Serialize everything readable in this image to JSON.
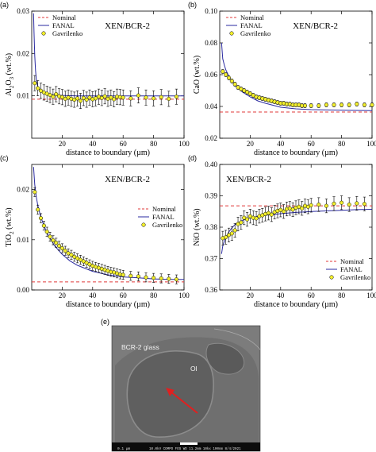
{
  "chart_data": [
    {
      "type": "line",
      "panel_label": "(a)",
      "annotation": "XEN/BCR-2",
      "xlabel": "distance to boundary (µm)",
      "ylabel": "Al2O3 (wt.%)",
      "ylabel_base": "Al",
      "ylabel_sub1": "2",
      "ylabel_mid": "O",
      "ylabel_sub2": "3",
      "ylabel_tail": " (wt.%)",
      "xlim": [
        0,
        100
      ],
      "ylim": [
        0,
        0.03
      ],
      "xticks": [
        20,
        40,
        60,
        80,
        100
      ],
      "yticks": [
        0.01,
        0.02,
        0.03
      ],
      "ytick_labels": [
        "0.01",
        "0.02",
        "0.03"
      ],
      "legend_position": "top-left",
      "series": [
        {
          "name": "Nominal",
          "kind": "dashed",
          "color": "#e03a3a",
          "x": [
            0,
            100
          ],
          "y": [
            0.0092,
            0.0092
          ]
        },
        {
          "name": "FANAL",
          "kind": "line",
          "color": "#2a2aa0",
          "x": [
            1.2,
            1.5,
            2,
            2.5,
            3,
            4,
            5,
            6,
            8,
            10,
            15,
            20,
            30,
            40,
            50,
            60,
            70,
            80,
            90,
            100
          ],
          "y": [
            0.0295,
            0.025,
            0.0195,
            0.016,
            0.0138,
            0.0122,
            0.0115,
            0.0111,
            0.0107,
            0.0104,
            0.0102,
            0.0101,
            0.01,
            0.01,
            0.01,
            0.01,
            0.01,
            0.01,
            0.01,
            0.01
          ]
        },
        {
          "name": "Gavrilenko",
          "kind": "points",
          "color": "#f2ee2c",
          "x": [
            2,
            4,
            6,
            8,
            10,
            12,
            14,
            16,
            18,
            20,
            22,
            24,
            26,
            28,
            30,
            32,
            34,
            36,
            38,
            40,
            42,
            44,
            46,
            48,
            50,
            52,
            54,
            56,
            58,
            60,
            65,
            70,
            75,
            80,
            85,
            90,
            95
          ],
          "y": [
            0.013,
            0.0118,
            0.0112,
            0.0108,
            0.0105,
            0.0102,
            0.0098,
            0.0104,
            0.0099,
            0.0097,
            0.0093,
            0.0096,
            0.0093,
            0.0091,
            0.0094,
            0.0088,
            0.0095,
            0.0091,
            0.0096,
            0.0092,
            0.0094,
            0.0098,
            0.0095,
            0.0099,
            0.0093,
            0.0096,
            0.0092,
            0.0098,
            0.0097,
            0.0096,
            0.0094,
            0.0101,
            0.0096,
            0.0094,
            0.0097,
            0.0093,
            0.0098
          ],
          "err": 0.0018
        }
      ]
    },
    {
      "type": "line",
      "panel_label": "(b)",
      "annotation": "XEN/BCR-2",
      "xlabel": "distance to boundary (µm)",
      "ylabel": "CaO (wt.%)",
      "ylabel_base": "CaO",
      "ylabel_sub1": "",
      "ylabel_mid": "",
      "ylabel_sub2": "",
      "ylabel_tail": " (wt.%)",
      "xlim": [
        0,
        100
      ],
      "ylim": [
        0.02,
        0.1
      ],
      "xticks": [
        20,
        40,
        60,
        80,
        100
      ],
      "xtick_labels": [
        "20",
        "40",
        "60",
        "80",
        "100"
      ],
      "yticks": [
        0.02,
        0.04,
        0.06,
        0.08,
        0.1
      ],
      "ytick_labels": [
        "0.02",
        "0.04",
        "0.06",
        "0.08",
        "0.10"
      ],
      "legend_position": "top-left",
      "series": [
        {
          "name": "Nominal",
          "kind": "dashed",
          "color": "#e03a3a",
          "x": [
            0,
            100
          ],
          "y": [
            0.0365,
            0.0365
          ]
        },
        {
          "name": "FANAL",
          "kind": "line",
          "color": "#2a2aa0",
          "x": [
            1.2,
            2,
            3,
            4,
            6,
            8,
            10,
            15,
            20,
            25,
            30,
            40,
            50,
            60,
            70,
            80,
            90,
            100
          ],
          "y": [
            0.08,
            0.07,
            0.066,
            0.063,
            0.059,
            0.056,
            0.0535,
            0.049,
            0.046,
            0.0435,
            0.042,
            0.0395,
            0.0385,
            0.038,
            0.0378,
            0.0376,
            0.0375,
            0.0374
          ]
        },
        {
          "name": "Gavrilenko",
          "kind": "points",
          "color": "#f2ee2c",
          "x": [
            2,
            4,
            6,
            8,
            10,
            12,
            14,
            16,
            18,
            20,
            22,
            24,
            26,
            28,
            30,
            32,
            34,
            36,
            38,
            40,
            42,
            44,
            46,
            48,
            50,
            52,
            54,
            56,
            60,
            65,
            70,
            75,
            80,
            85,
            90,
            95,
            100
          ],
          "y": [
            0.062,
            0.06,
            0.058,
            0.056,
            0.054,
            0.052,
            0.051,
            0.05,
            0.049,
            0.048,
            0.047,
            0.046,
            0.0455,
            0.045,
            0.0445,
            0.044,
            0.0435,
            0.043,
            0.0425,
            0.042,
            0.042,
            0.0415,
            0.0415,
            0.041,
            0.041,
            0.041,
            0.0405,
            0.0405,
            0.0405,
            0.0405,
            0.041,
            0.041,
            0.041,
            0.041,
            0.0415,
            0.041,
            0.041
          ],
          "err": 0.0012
        }
      ]
    },
    {
      "type": "line",
      "panel_label": "(c)",
      "annotation": "XEN/BCR-2",
      "xlabel": "distance to boundary (µm)",
      "ylabel": "TiO2 (wt.%)",
      "ylabel_base": "TiO",
      "ylabel_sub1": "2",
      "ylabel_mid": "",
      "ylabel_sub2": "",
      "ylabel_tail": " (wt.%)",
      "xlim": [
        0,
        100
      ],
      "ylim": [
        0,
        0.025
      ],
      "xticks": [
        20,
        40,
        60,
        80,
        100
      ],
      "xtick_labels": [
        "20",
        "40",
        "60",
        "80",
        "100"
      ],
      "yticks": [
        0,
        0.01,
        0.02
      ],
      "ytick_labels": [
        "0.00",
        "0.01",
        "0.02"
      ],
      "legend_position": "right",
      "series": [
        {
          "name": "Nominal",
          "kind": "dashed",
          "color": "#e03a3a",
          "x": [
            0,
            100
          ],
          "y": [
            0.0016,
            0.0016
          ]
        },
        {
          "name": "FANAL",
          "kind": "line",
          "color": "#2a2aa0",
          "x": [
            1.2,
            2,
            3,
            4,
            6,
            8,
            10,
            15,
            20,
            25,
            30,
            40,
            50,
            60,
            70,
            80,
            90,
            100
          ],
          "y": [
            0.0245,
            0.021,
            0.0185,
            0.0168,
            0.0145,
            0.0128,
            0.0114,
            0.0088,
            0.0071,
            0.0058,
            0.0049,
            0.0037,
            0.003,
            0.0026,
            0.0024,
            0.0022,
            0.0021,
            0.0021
          ]
        },
        {
          "name": "Gavrilenko",
          "kind": "points",
          "color": "#f2ee2c",
          "x": [
            2,
            4,
            6,
            8,
            10,
            12,
            14,
            16,
            18,
            20,
            22,
            24,
            26,
            28,
            30,
            32,
            34,
            36,
            38,
            40,
            42,
            44,
            46,
            48,
            50,
            52,
            54,
            56,
            58,
            60,
            65,
            70,
            75,
            80,
            85,
            90,
            95
          ],
          "y": [
            0.0195,
            0.016,
            0.0143,
            0.0128,
            0.0116,
            0.0106,
            0.0099,
            0.0094,
            0.0088,
            0.0083,
            0.0078,
            0.0073,
            0.007,
            0.0066,
            0.0063,
            0.006,
            0.0057,
            0.0054,
            0.0051,
            0.0048,
            0.0046,
            0.0044,
            0.0042,
            0.004,
            0.0038,
            0.0036,
            0.0035,
            0.0033,
            0.0031,
            0.003,
            0.0028,
            0.0027,
            0.0025,
            0.0024,
            0.0023,
            0.0022,
            0.0021
          ],
          "err": 0.0009
        }
      ]
    },
    {
      "type": "line",
      "panel_label": "(d)",
      "annotation": "XEN/BCR-2",
      "xlabel": "distance to boundary (µm)",
      "ylabel": "NiO (wt.%)",
      "ylabel_base": "NiO",
      "ylabel_sub1": "",
      "ylabel_mid": "",
      "ylabel_sub2": "",
      "ylabel_tail": " (wt.%)",
      "xlim": [
        0,
        100
      ],
      "ylim": [
        0.36,
        0.4
      ],
      "xticks": [
        20,
        40,
        60,
        80,
        100
      ],
      "xtick_labels": [
        "20",
        "40",
        "60",
        "80",
        "100"
      ],
      "yticks": [
        0.36,
        0.37,
        0.38,
        0.39,
        0.4
      ],
      "ytick_labels": [
        "0.36",
        "0.37",
        "0.38",
        "0.39",
        "0.40"
      ],
      "legend_position": "bottom-right",
      "series": [
        {
          "name": "Nominal",
          "kind": "dashed",
          "color": "#e03a3a",
          "x": [
            0,
            100
          ],
          "y": [
            0.3868,
            0.3868
          ]
        },
        {
          "name": "FANAL",
          "kind": "line",
          "color": "#2a2aa0",
          "x": [
            1.2,
            2,
            3,
            4,
            6,
            8,
            10,
            15,
            20,
            30,
            40,
            50,
            60,
            70,
            80,
            90,
            100
          ],
          "y": [
            0.3715,
            0.374,
            0.3755,
            0.3768,
            0.3785,
            0.3798,
            0.3808,
            0.3822,
            0.383,
            0.3838,
            0.3843,
            0.3847,
            0.385,
            0.3852,
            0.3854,
            0.3856,
            0.3857
          ]
        },
        {
          "name": "Gavrilenko",
          "kind": "points",
          "color": "#f2ee2c",
          "x": [
            2,
            4,
            6,
            8,
            10,
            12,
            14,
            16,
            18,
            20,
            22,
            24,
            26,
            28,
            30,
            32,
            34,
            36,
            38,
            40,
            42,
            44,
            46,
            48,
            50,
            52,
            54,
            56,
            58,
            60,
            65,
            70,
            75,
            80,
            85,
            90,
            95
          ],
          "y": [
            0.3765,
            0.3768,
            0.3775,
            0.378,
            0.379,
            0.381,
            0.3815,
            0.383,
            0.3825,
            0.3835,
            0.383,
            0.3828,
            0.3835,
            0.3838,
            0.3842,
            0.3845,
            0.384,
            0.3848,
            0.3852,
            0.3855,
            0.385,
            0.3858,
            0.386,
            0.3856,
            0.3862,
            0.3865,
            0.386,
            0.3868,
            0.3865,
            0.387,
            0.3872,
            0.3868,
            0.3875,
            0.3878,
            0.3872,
            0.3876,
            0.3874
          ],
          "err": 0.0022
        }
      ]
    }
  ],
  "micrograph": {
    "panel_label": "(e)",
    "matrix_label": "BCR-2 glass",
    "crystal_label": "Ol",
    "scale_text": "0.1 µm",
    "footer_text": "10.0kV COMPO  FOS   WD 11.2mm   10kx 100nm   8/4/2021",
    "arrow_color": "#e02020"
  }
}
